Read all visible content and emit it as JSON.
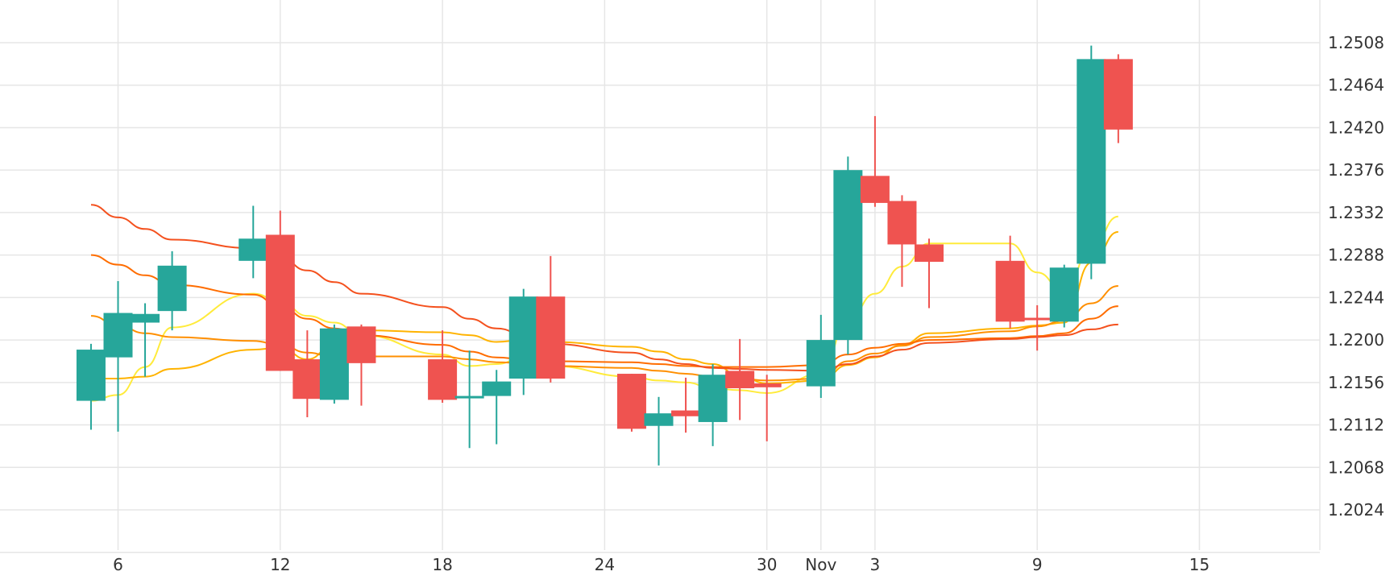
{
  "chart_data": {
    "type": "candlestick",
    "title": "",
    "xlabel": "",
    "ylabel": "",
    "y_axis_position": "right",
    "ylim": [
      1.1985,
      1.2535
    ],
    "grid": true,
    "legend": "none",
    "x_tick_labels": [
      "6",
      "12",
      "18",
      "24",
      "30",
      "Nov",
      "3",
      "9",
      "15"
    ],
    "y_tick_labels": [
      "1.2024",
      "1.2068",
      "1.2112",
      "1.2156",
      "1.2200",
      "1.2244",
      "1.2288",
      "1.2332",
      "1.2376",
      "1.2420",
      "1.2464",
      "1.2508"
    ],
    "y_ticks": [
      1.2024,
      1.2068,
      1.2112,
      1.2156,
      1.22,
      1.2244,
      1.2288,
      1.2332,
      1.2376,
      1.242,
      1.2464,
      1.2508
    ],
    "candles": [
      {
        "date": "2020-10-05",
        "open": 1.2137,
        "high": 1.2196,
        "low": 1.2107,
        "close": 1.219
      },
      {
        "date": "2020-10-06",
        "open": 1.2182,
        "high": 1.2261,
        "low": 1.2105,
        "close": 1.2228
      },
      {
        "date": "2020-10-07",
        "open": 1.2218,
        "high": 1.2238,
        "low": 1.2162,
        "close": 1.2227
      },
      {
        "date": "2020-10-08",
        "open": 1.223,
        "high": 1.2292,
        "low": 1.221,
        "close": 1.2277
      },
      {
        "date": "2020-10-11",
        "open": 1.2282,
        "high": 1.2339,
        "low": 1.2264,
        "close": 1.2305
      },
      {
        "date": "2020-10-12",
        "open": 1.2309,
        "high": 1.2334,
        "low": 1.2168,
        "close": 1.2168
      },
      {
        "date": "2020-10-13",
        "open": 1.218,
        "high": 1.221,
        "low": 1.212,
        "close": 1.2139
      },
      {
        "date": "2020-10-14",
        "open": 1.2138,
        "high": 1.2216,
        "low": 1.2134,
        "close": 1.2212
      },
      {
        "date": "2020-10-15",
        "open": 1.2214,
        "high": 1.2216,
        "low": 1.2132,
        "close": 1.2176
      },
      {
        "date": "2020-10-18",
        "open": 1.218,
        "high": 1.221,
        "low": 1.2135,
        "close": 1.2138
      },
      {
        "date": "2020-10-19",
        "open": 1.214,
        "high": 1.2189,
        "low": 1.2088,
        "close": 1.2142
      },
      {
        "date": "2020-10-20",
        "open": 1.2142,
        "high": 1.2169,
        "low": 1.2092,
        "close": 1.2157
      },
      {
        "date": "2020-10-21",
        "open": 1.216,
        "high": 1.2253,
        "low": 1.2143,
        "close": 1.2245
      },
      {
        "date": "2020-10-22",
        "open": 1.2245,
        "high": 1.2287,
        "low": 1.2156,
        "close": 1.216
      },
      {
        "date": "2020-10-25",
        "open": 1.2165,
        "high": 1.2165,
        "low": 1.2105,
        "close": 1.2108
      },
      {
        "date": "2020-10-26",
        "open": 1.2111,
        "high": 1.2141,
        "low": 1.207,
        "close": 1.2124
      },
      {
        "date": "2020-10-27",
        "open": 1.2127,
        "high": 1.2161,
        "low": 1.2104,
        "close": 1.2121
      },
      {
        "date": "2020-10-28",
        "open": 1.2115,
        "high": 1.2175,
        "low": 1.209,
        "close": 1.2164
      },
      {
        "date": "2020-10-29",
        "open": 1.2168,
        "high": 1.2201,
        "low": 1.2117,
        "close": 1.215
      },
      {
        "date": "2020-10-30",
        "open": 1.2155,
        "high": 1.2164,
        "low": 1.2095,
        "close": 1.2151
      },
      {
        "date": "2020-11-01",
        "open": 1.2152,
        "high": 1.2226,
        "low": 1.214,
        "close": 1.22
      },
      {
        "date": "2020-11-02",
        "open": 1.22,
        "high": 1.239,
        "low": 1.2185,
        "close": 1.2376
      },
      {
        "date": "2020-11-03",
        "open": 1.237,
        "high": 1.2432,
        "low": 1.2338,
        "close": 1.2342
      },
      {
        "date": "2020-11-04",
        "open": 1.2344,
        "high": 1.235,
        "low": 1.2255,
        "close": 1.2299
      },
      {
        "date": "2020-11-05",
        "open": 1.2299,
        "high": 1.2305,
        "low": 1.2233,
        "close": 1.2281
      },
      {
        "date": "2020-11-08",
        "open": 1.2282,
        "high": 1.2308,
        "low": 1.2212,
        "close": 1.2219
      },
      {
        "date": "2020-11-09",
        "open": 1.2223,
        "high": 1.2236,
        "low": 1.2189,
        "close": 1.2221
      },
      {
        "date": "2020-11-10",
        "open": 1.2219,
        "high": 1.2278,
        "low": 1.2213,
        "close": 1.2275
      },
      {
        "date": "2020-11-11",
        "open": 1.2279,
        "high": 1.2505,
        "low": 1.2263,
        "close": 1.2491
      },
      {
        "date": "2020-11-12",
        "open": 1.2491,
        "high": 1.2496,
        "low": 1.2404,
        "close": 1.2418
      }
    ],
    "moving_averages": [
      {
        "color": "#ffeb3b",
        "values": [
          {
            "date": "2020-10-05",
            "value": 1.2137
          },
          {
            "date": "2020-10-06",
            "value": 1.2143
          },
          {
            "date": "2020-10-07",
            "value": 1.2172
          },
          {
            "date": "2020-10-08",
            "value": 1.2213
          },
          {
            "date": "2020-10-11",
            "value": 1.2248
          },
          {
            "date": "2020-10-12",
            "value": 1.224
          },
          {
            "date": "2020-10-13",
            "value": 1.2225
          },
          {
            "date": "2020-10-14",
            "value": 1.2218
          },
          {
            "date": "2020-10-15",
            "value": 1.2205
          },
          {
            "date": "2020-10-18",
            "value": 1.2185
          },
          {
            "date": "2020-10-19",
            "value": 1.2173
          },
          {
            "date": "2020-10-20",
            "value": 1.2175
          },
          {
            "date": "2020-10-21",
            "value": 1.2182
          },
          {
            "date": "2020-10-22",
            "value": 1.2173
          },
          {
            "date": "2020-10-25",
            "value": 1.2162
          },
          {
            "date": "2020-10-26",
            "value": 1.2158
          },
          {
            "date": "2020-10-27",
            "value": 1.2156
          },
          {
            "date": "2020-10-28",
            "value": 1.215
          },
          {
            "date": "2020-10-29",
            "value": 1.2148
          },
          {
            "date": "2020-10-30",
            "value": 1.2145
          },
          {
            "date": "2020-11-01",
            "value": 1.2165
          },
          {
            "date": "2020-11-02",
            "value": 1.222
          },
          {
            "date": "2020-11-03",
            "value": 1.2248
          },
          {
            "date": "2020-11-04",
            "value": 1.2276
          },
          {
            "date": "2020-11-05",
            "value": 1.23
          },
          {
            "date": "2020-11-08",
            "value": 1.23
          },
          {
            "date": "2020-11-09",
            "value": 1.227
          },
          {
            "date": "2020-11-10",
            "value": 1.225
          },
          {
            "date": "2020-11-11",
            "value": 1.2295
          },
          {
            "date": "2020-11-12",
            "value": 1.2328
          }
        ]
      },
      {
        "color": "#ffb300",
        "values": [
          {
            "date": "2020-10-05",
            "value": 1.216
          },
          {
            "date": "2020-10-06",
            "value": 1.216
          },
          {
            "date": "2020-10-07",
            "value": 1.2162
          },
          {
            "date": "2020-10-08",
            "value": 1.217
          },
          {
            "date": "2020-10-11",
            "value": 1.219
          },
          {
            "date": "2020-10-12",
            "value": 1.2192
          },
          {
            "date": "2020-10-13",
            "value": 1.218
          },
          {
            "date": "2020-10-14",
            "value": 1.2195
          },
          {
            "date": "2020-10-15",
            "value": 1.221
          },
          {
            "date": "2020-10-18",
            "value": 1.2208
          },
          {
            "date": "2020-10-19",
            "value": 1.2205
          },
          {
            "date": "2020-10-20",
            "value": 1.2198
          },
          {
            "date": "2020-10-21",
            "value": 1.22
          },
          {
            "date": "2020-10-22",
            "value": 1.2198
          },
          {
            "date": "2020-10-25",
            "value": 1.2193
          },
          {
            "date": "2020-10-26",
            "value": 1.2188
          },
          {
            "date": "2020-10-27",
            "value": 1.218
          },
          {
            "date": "2020-10-28",
            "value": 1.2175
          },
          {
            "date": "2020-10-29",
            "value": 1.2163
          },
          {
            "date": "2020-10-30",
            "value": 1.2155
          },
          {
            "date": "2020-11-01",
            "value": 1.2158
          },
          {
            "date": "2020-11-02",
            "value": 1.2174
          },
          {
            "date": "2020-11-03",
            "value": 1.2182
          },
          {
            "date": "2020-11-04",
            "value": 1.2195
          },
          {
            "date": "2020-11-05",
            "value": 1.2207
          },
          {
            "date": "2020-11-08",
            "value": 1.2212
          },
          {
            "date": "2020-11-09",
            "value": 1.2215
          },
          {
            "date": "2020-11-10",
            "value": 1.2218
          },
          {
            "date": "2020-11-11",
            "value": 1.228
          },
          {
            "date": "2020-11-12",
            "value": 1.2312
          }
        ]
      },
      {
        "color": "#ff8f00",
        "values": [
          {
            "date": "2020-10-05",
            "value": 1.2225
          },
          {
            "date": "2020-10-06",
            "value": 1.2215
          },
          {
            "date": "2020-10-07",
            "value": 1.2207
          },
          {
            "date": "2020-10-08",
            "value": 1.2203
          },
          {
            "date": "2020-10-11",
            "value": 1.2199
          },
          {
            "date": "2020-10-12",
            "value": 1.2195
          },
          {
            "date": "2020-10-13",
            "value": 1.2187
          },
          {
            "date": "2020-10-14",
            "value": 1.2182
          },
          {
            "date": "2020-10-15",
            "value": 1.2183
          },
          {
            "date": "2020-10-18",
            "value": 1.2183
          },
          {
            "date": "2020-10-19",
            "value": 1.218
          },
          {
            "date": "2020-10-20",
            "value": 1.2177
          },
          {
            "date": "2020-10-21",
            "value": 1.2176
          },
          {
            "date": "2020-10-22",
            "value": 1.2173
          },
          {
            "date": "2020-10-25",
            "value": 1.2171
          },
          {
            "date": "2020-10-26",
            "value": 1.2168
          },
          {
            "date": "2020-10-27",
            "value": 1.2165
          },
          {
            "date": "2020-10-28",
            "value": 1.2162
          },
          {
            "date": "2020-10-29",
            "value": 1.216
          },
          {
            "date": "2020-10-30",
            "value": 1.2158
          },
          {
            "date": "2020-11-01",
            "value": 1.216
          },
          {
            "date": "2020-11-02",
            "value": 1.2178
          },
          {
            "date": "2020-11-03",
            "value": 1.2186
          },
          {
            "date": "2020-11-04",
            "value": 1.2194
          },
          {
            "date": "2020-11-05",
            "value": 1.2203
          },
          {
            "date": "2020-11-08",
            "value": 1.2209
          },
          {
            "date": "2020-11-09",
            "value": 1.2214
          },
          {
            "date": "2020-11-10",
            "value": 1.222
          },
          {
            "date": "2020-11-11",
            "value": 1.2238
          },
          {
            "date": "2020-11-12",
            "value": 1.2256
          }
        ]
      },
      {
        "color": "#ff6d00",
        "values": [
          {
            "date": "2020-10-05",
            "value": 1.2288
          },
          {
            "date": "2020-10-06",
            "value": 1.2278
          },
          {
            "date": "2020-10-07",
            "value": 1.2267
          },
          {
            "date": "2020-10-08",
            "value": 1.2257
          },
          {
            "date": "2020-10-11",
            "value": 1.2247
          },
          {
            "date": "2020-10-12",
            "value": 1.2235
          },
          {
            "date": "2020-10-13",
            "value": 1.2222
          },
          {
            "date": "2020-10-14",
            "value": 1.2212
          },
          {
            "date": "2020-10-15",
            "value": 1.2205
          },
          {
            "date": "2020-10-18",
            "value": 1.2195
          },
          {
            "date": "2020-10-19",
            "value": 1.2188
          },
          {
            "date": "2020-10-20",
            "value": 1.2182
          },
          {
            "date": "2020-10-21",
            "value": 1.218
          },
          {
            "date": "2020-10-22",
            "value": 1.2178
          },
          {
            "date": "2020-10-25",
            "value": 1.2177
          },
          {
            "date": "2020-10-26",
            "value": 1.2175
          },
          {
            "date": "2020-10-27",
            "value": 1.2173
          },
          {
            "date": "2020-10-28",
            "value": 1.2172
          },
          {
            "date": "2020-10-29",
            "value": 1.2172
          },
          {
            "date": "2020-10-30",
            "value": 1.2172
          },
          {
            "date": "2020-11-01",
            "value": 1.2174
          },
          {
            "date": "2020-11-02",
            "value": 1.2185
          },
          {
            "date": "2020-11-03",
            "value": 1.2192
          },
          {
            "date": "2020-11-04",
            "value": 1.2196
          },
          {
            "date": "2020-11-05",
            "value": 1.22
          },
          {
            "date": "2020-11-08",
            "value": 1.2202
          },
          {
            "date": "2020-11-09",
            "value": 1.2204
          },
          {
            "date": "2020-11-10",
            "value": 1.2207
          },
          {
            "date": "2020-11-11",
            "value": 1.2222
          },
          {
            "date": "2020-11-12",
            "value": 1.2235
          }
        ]
      },
      {
        "color": "#f4511e",
        "values": [
          {
            "date": "2020-10-05",
            "value": 1.234
          },
          {
            "date": "2020-10-06",
            "value": 1.2327
          },
          {
            "date": "2020-10-07",
            "value": 1.2315
          },
          {
            "date": "2020-10-08",
            "value": 1.2304
          },
          {
            "date": "2020-10-11",
            "value": 1.2295
          },
          {
            "date": "2020-10-12",
            "value": 1.2285
          },
          {
            "date": "2020-10-13",
            "value": 1.2272
          },
          {
            "date": "2020-10-14",
            "value": 1.226
          },
          {
            "date": "2020-10-15",
            "value": 1.2248
          },
          {
            "date": "2020-10-18",
            "value": 1.2234
          },
          {
            "date": "2020-10-19",
            "value": 1.2222
          },
          {
            "date": "2020-10-20",
            "value": 1.2212
          },
          {
            "date": "2020-10-21",
            "value": 1.2206
          },
          {
            "date": "2020-10-22",
            "value": 1.2196
          },
          {
            "date": "2020-10-25",
            "value": 1.2187
          },
          {
            "date": "2020-10-26",
            "value": 1.218
          },
          {
            "date": "2020-10-27",
            "value": 1.2175
          },
          {
            "date": "2020-10-28",
            "value": 1.2171
          },
          {
            "date": "2020-10-29",
            "value": 1.217
          },
          {
            "date": "2020-10-30",
            "value": 1.2169
          },
          {
            "date": "2020-11-01",
            "value": 1.2168
          },
          {
            "date": "2020-11-02",
            "value": 1.2175
          },
          {
            "date": "2020-11-03",
            "value": 1.2183
          },
          {
            "date": "2020-11-04",
            "value": 1.219
          },
          {
            "date": "2020-11-05",
            "value": 1.2197
          },
          {
            "date": "2020-11-08",
            "value": 1.2201
          },
          {
            "date": "2020-11-09",
            "value": 1.2203
          },
          {
            "date": "2020-11-10",
            "value": 1.2205
          },
          {
            "date": "2020-11-11",
            "value": 1.2211
          },
          {
            "date": "2020-11-12",
            "value": 1.2216
          }
        ]
      }
    ],
    "colors": {
      "up": "#26a69a",
      "down": "#ef5350",
      "grid": "#e6e6e6",
      "axis_text": "#333333"
    }
  }
}
